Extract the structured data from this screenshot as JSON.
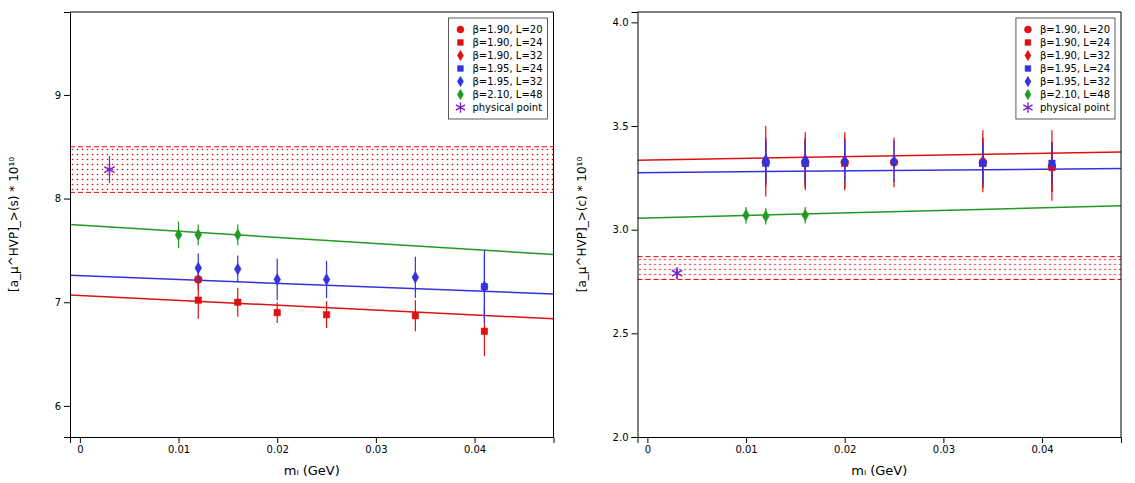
{
  "chart_data": [
    {
      "type": "scatter",
      "x_label": "mₗ (GeV)",
      "y_label": "[a_μ^HVP]_>(s) * 10¹⁰",
      "xlim": [
        -0.001,
        0.048
      ],
      "xticks": [
        0,
        0.01,
        0.02,
        0.03,
        0.04
      ],
      "ylim": [
        5.7,
        9.8
      ],
      "yticks": [
        6,
        7,
        8,
        9
      ],
      "grid": false,
      "legend": "upper right",
      "band": {
        "lower": 8.06,
        "upper": 8.5,
        "color": "#EE0000",
        "line_style": "dashed"
      },
      "fit_lines": [
        {
          "color": "#DD1111",
          "x": [
            -0.001,
            0.048
          ],
          "values": [
            7.07,
            6.84
          ]
        },
        {
          "color": "#3333DD",
          "x": [
            -0.001,
            0.048
          ],
          "values": [
            7.26,
            7.08
          ]
        },
        {
          "color": "#229922",
          "x": [
            -0.001,
            0.048
          ],
          "values": [
            7.75,
            7.46
          ]
        }
      ],
      "series": [
        {
          "name": "β=1.90, L=20",
          "color": "#DD1111",
          "marker": "circle",
          "x": [
            0.012
          ],
          "values": [
            7.22
          ],
          "errors": [
            0.1
          ]
        },
        {
          "name": "β=1.90, L=24",
          "color": "#DD1111",
          "marker": "square",
          "x": [
            0.012,
            0.016,
            0.02,
            0.025,
            0.034,
            0.041
          ],
          "values": [
            7.02,
            7.0,
            6.9,
            6.88,
            6.87,
            6.72
          ],
          "errors": [
            0.18,
            0.14,
            0.1,
            0.13,
            0.15,
            0.24
          ]
        },
        {
          "name": "β=1.90, L=32",
          "color": "#DD1111",
          "marker": "diamond",
          "x": [],
          "values": [],
          "errors": []
        },
        {
          "name": "β=1.95, L=24",
          "color": "#3333DD",
          "marker": "square",
          "x": [
            0.041
          ],
          "values": [
            7.15
          ],
          "errors": [
            0.3
          ]
        },
        {
          "name": "β=1.95, L=32",
          "color": "#3333DD",
          "marker": "diamond",
          "x": [
            0.012,
            0.016,
            0.02,
            0.025,
            0.034,
            0.041
          ],
          "values": [
            7.33,
            7.32,
            7.22,
            7.22,
            7.24,
            7.15
          ],
          "errors": [
            0.14,
            0.13,
            0.2,
            0.18,
            0.2,
            0.35
          ]
        },
        {
          "name": "β=2.10, L=48",
          "color": "#229922",
          "marker": "diamond",
          "x": [
            0.01,
            0.012,
            0.016
          ],
          "values": [
            7.65,
            7.65,
            7.65
          ],
          "errors": [
            0.13,
            0.1,
            0.1
          ]
        },
        {
          "name": "physical point",
          "color": "#7722CC",
          "marker": "star",
          "x": [
            0.003
          ],
          "values": [
            8.28
          ],
          "errors": [
            0.13
          ]
        }
      ]
    },
    {
      "type": "scatter",
      "x_label": "mₗ (GeV)",
      "y_label": "[a_μ^HVP]_>(c) * 10¹⁰",
      "xlim": [
        -0.001,
        0.048
      ],
      "xticks": [
        0,
        0.01,
        0.02,
        0.03,
        0.04
      ],
      "ylim": [
        2.0,
        4.05
      ],
      "yticks": [
        {
          "value": 2,
          "label": "2.0"
        },
        2.5,
        {
          "value": 3,
          "label": "3.0"
        },
        3.5,
        {
          "value": 4,
          "label": "4.0"
        }
      ],
      "grid": false,
      "legend": "upper right",
      "band": {
        "lower": 2.76,
        "upper": 2.87,
        "color": "#EE0000",
        "line_style": "dashed"
      },
      "fit_lines": [
        {
          "color": "#DD1111",
          "x": [
            -0.001,
            0.048
          ],
          "values": [
            3.335,
            3.375
          ]
        },
        {
          "color": "#3333DD",
          "x": [
            -0.001,
            0.048
          ],
          "values": [
            3.275,
            3.295
          ]
        },
        {
          "color": "#229922",
          "x": [
            -0.001,
            0.048
          ],
          "values": [
            3.055,
            3.115
          ]
        }
      ],
      "series": [
        {
          "name": "β=1.90, L=20",
          "color": "#DD1111",
          "marker": "circle",
          "x": [
            0.012,
            0.016,
            0.02,
            0.025,
            0.034,
            0.041
          ],
          "values": [
            3.325,
            3.325,
            3.325,
            3.325,
            3.325,
            3.305
          ],
          "errors": [
            0.12,
            0.12,
            0.12,
            0.12,
            0.12,
            0.12
          ]
        },
        {
          "name": "β=1.90, L=24",
          "color": "#DD1111",
          "marker": "square",
          "x": [
            0.016,
            0.02,
            0.034,
            0.041
          ],
          "values": [
            3.32,
            3.32,
            3.32,
            3.3
          ],
          "errors": [
            0.12,
            0.12,
            0.12,
            0.12
          ]
        },
        {
          "name": "β=1.90, L=32",
          "color": "#DD1111",
          "marker": "diamond",
          "x": [
            0.012,
            0.016,
            0.02,
            0.034,
            0.041
          ],
          "values": [
            3.33,
            3.33,
            3.33,
            3.33,
            3.31
          ],
          "errors": [
            0.17,
            0.14,
            0.14,
            0.15,
            0.17
          ]
        },
        {
          "name": "β=1.95, L=24",
          "color": "#3333DD",
          "marker": "square",
          "x": [
            0.012,
            0.016,
            0.034,
            0.041
          ],
          "values": [
            3.32,
            3.32,
            3.32,
            3.32
          ],
          "errors": [
            0.1,
            0.1,
            0.1,
            0.1
          ]
        },
        {
          "name": "β=1.95, L=32",
          "color": "#3333DD",
          "marker": "diamond",
          "x": [
            0.012,
            0.016,
            0.02,
            0.025
          ],
          "values": [
            3.335,
            3.335,
            3.33,
            3.33
          ],
          "errors": [
            0.1,
            0.1,
            0.1,
            0.1
          ]
        },
        {
          "name": "β=2.10, L=48",
          "color": "#229922",
          "marker": "diamond",
          "x": [
            0.01,
            0.012,
            0.016
          ],
          "values": [
            3.07,
            3.065,
            3.07
          ],
          "errors": [
            0.04,
            0.04,
            0.04
          ]
        },
        {
          "name": "physical point",
          "color": "#7722CC",
          "marker": "star",
          "x": [
            0.003
          ],
          "values": [
            2.79
          ],
          "errors": [
            0.025
          ]
        }
      ]
    }
  ]
}
